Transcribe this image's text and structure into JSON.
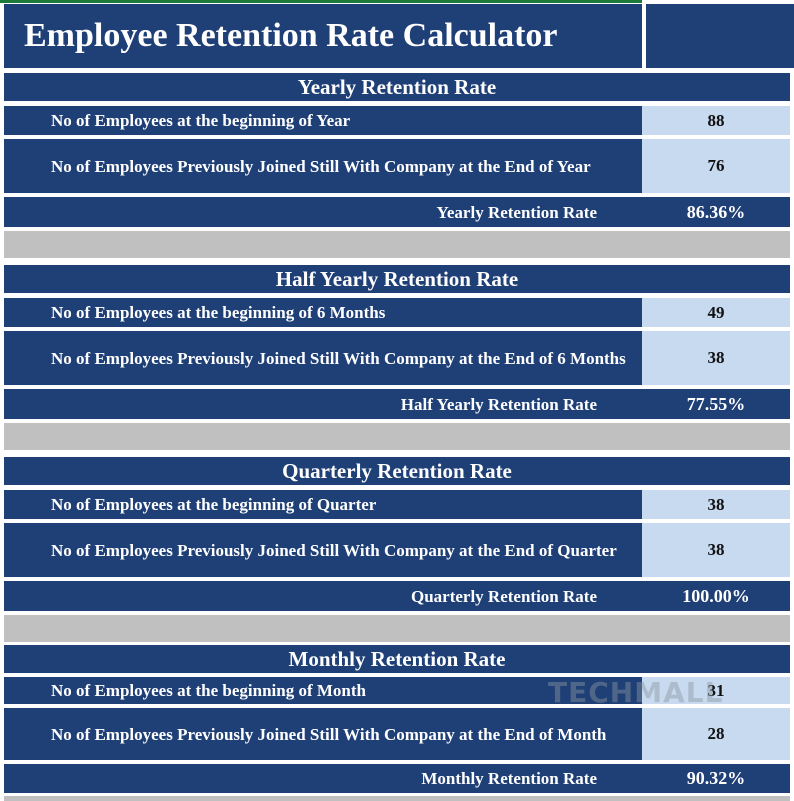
{
  "title": "Employee Retention Rate Calculator",
  "sections": [
    {
      "header": "Yearly Retention Rate",
      "begin_label": "No of Employees at the beginning of Year",
      "begin_value": "88",
      "still_label": "No of Employees Previously Joined Still With Company at the End of Year",
      "still_value": "76",
      "result_label": "Yearly Retention Rate",
      "result_value": "86.36%"
    },
    {
      "header": "Half Yearly Retention Rate",
      "begin_label": "No of Employees at the beginning of 6 Months",
      "begin_value": "49",
      "still_label": "No of Employees Previously Joined Still With Company at the End of 6 Months",
      "still_value": "38",
      "result_label": "Half Yearly Retention Rate",
      "result_value": "77.55%"
    },
    {
      "header": "Quarterly Retention Rate",
      "begin_label": "No of Employees at the beginning of Quarter",
      "begin_value": "38",
      "still_label": "No of Employees Previously Joined Still With Company at the End of Quarter",
      "still_value": "38",
      "result_label": "Quarterly Retention Rate",
      "result_value": "100.00%"
    },
    {
      "header": "Monthly Retention Rate",
      "begin_label": "No of Employees at the beginning of Month",
      "begin_value": "31",
      "still_label": "No of Employees Previously Joined Still With Company at the End of Month",
      "still_value": "28",
      "result_label": "Monthly Retention Rate",
      "result_value": "90.32%"
    }
  ],
  "watermark": "TECHMALL",
  "colors": {
    "header_bg": "#1f3f77",
    "input_bg": "#c7daf0",
    "separator": "#c0c0c0"
  }
}
